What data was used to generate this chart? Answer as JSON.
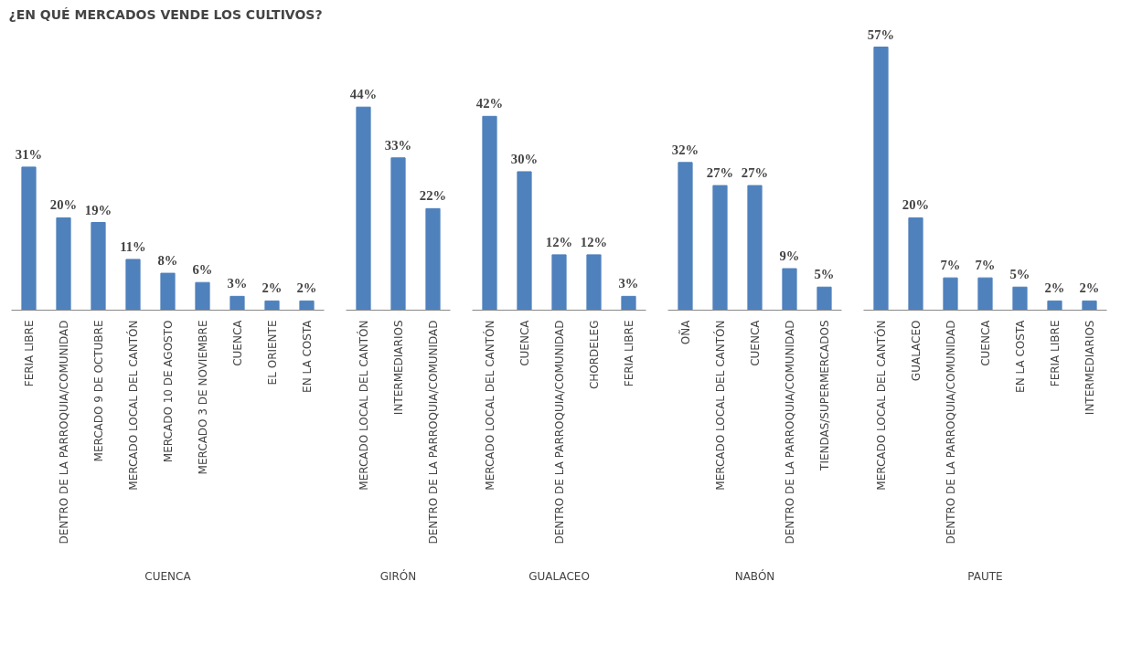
{
  "chart_data": [
    {
      "type": "bar",
      "title": "¿EN QUÉ MERCADOS  VENDE LOS CULTIVOS?",
      "xlabel": "CUENCA",
      "color": "#4f81bd",
      "categories": [
        "FERIA LIBRE",
        "DENTRO DE LA PARROQUIA/COMUNIDAD",
        "MERCADO 9 DE OCTUBRE",
        "MERCADO LOCAL DEL CANTÓN",
        "MERCADO 10 DE AGOSTO",
        "MERCADO 3 DE NOVIEMBRE",
        "CUENCA",
        "EL ORIENTE",
        "EN LA COSTA"
      ],
      "values": [
        31,
        20,
        19,
        11,
        8,
        6,
        3,
        2,
        2
      ],
      "value_labels": [
        "31%",
        "20%",
        "19%",
        "11%",
        "8%",
        "6%",
        "3%",
        "2%",
        "2%"
      ]
    },
    {
      "type": "bar",
      "xlabel": "GIRÓN",
      "color": "#4f81bd",
      "categories": [
        "MERCADO LOCAL DEL CANTÓN",
        "INTERMEDIARIOS",
        "DENTRO DE LA PARROQUIA/COMUNIDAD"
      ],
      "values": [
        44,
        33,
        22
      ],
      "value_labels": [
        "44%",
        "33%",
        "22%"
      ]
    },
    {
      "type": "bar",
      "xlabel": "GUALACEO",
      "color": "#4f81bd",
      "categories": [
        "MERCADO LOCAL DEL CANTÓN",
        "CUENCA",
        "DENTRO DE LA PARROQUIA/COMUNIDAD",
        "CHORDELEG",
        "FERIA LIBRE"
      ],
      "values": [
        42,
        30,
        12,
        12,
        3
      ],
      "value_labels": [
        "42%",
        "30%",
        "12%",
        "12%",
        "3%"
      ]
    },
    {
      "type": "bar",
      "xlabel": "NABÓN",
      "color": "#4f81bd",
      "categories": [
        "OÑA",
        "MERCADO LOCAL DEL CANTÓN",
        "CUENCA",
        "DENTRO DE LA PARROQUIA/COMUNIDAD",
        "TIENDAS/SUPERMERCADOS"
      ],
      "values": [
        32,
        27,
        27,
        9,
        5
      ],
      "value_labels": [
        "32%",
        "27%",
        "27%",
        "9%",
        "5%"
      ]
    },
    {
      "type": "bar",
      "xlabel": "PAUTE",
      "color": "#4f81bd",
      "categories": [
        "MERCADO LOCAL DEL CANTÓN",
        "GUALACEO",
        "DENTRO DE LA PARROQUIA/COMUNIDAD",
        "CUENCA",
        "EN LA COSTA",
        "FERIA LIBRE",
        "INTERMEDIARIOS"
      ],
      "values": [
        57,
        20,
        7,
        7,
        5,
        2,
        2
      ],
      "value_labels": [
        "57%",
        "20%",
        "7%",
        "7%",
        "5%",
        "2%",
        "2%"
      ]
    }
  ]
}
